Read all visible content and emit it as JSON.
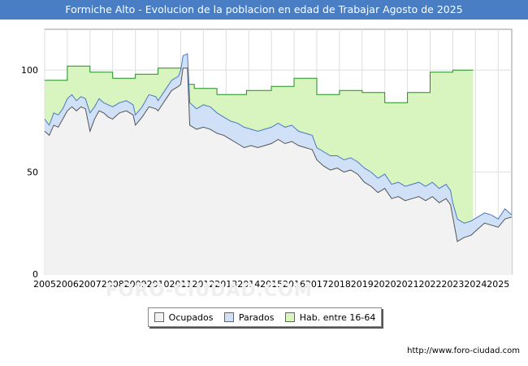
{
  "title": "Formiche Alto - Evolucion de la poblacion en edad de Trabajar Agosto de 2025",
  "watermark": "FORO-CIUDAD.COM",
  "url": "http://www.foro-ciudad.com",
  "colors": {
    "title_bg": "#4a7ec4",
    "hab_fill": "#d8f5c0",
    "hab_line": "#1f8f1f",
    "parados_fill": "#cfe0f7",
    "parados_line": "#4a78c4",
    "ocupados_fill": "#f2f2f2",
    "ocupados_line": "#555555"
  },
  "chart_data": {
    "type": "area",
    "x_range": [
      2005,
      2025.6
    ],
    "ylim": [
      0,
      120
    ],
    "yticks": [
      0,
      50,
      100
    ],
    "xticks": [
      "2005",
      "2006",
      "2007",
      "2008",
      "2009",
      "2010",
      "2011",
      "2012",
      "2013",
      "2014",
      "2015",
      "2016",
      "2017",
      "2018",
      "2019",
      "2020",
      "2021",
      "2022",
      "2023",
      "2024",
      "2025"
    ],
    "grid": true,
    "legend_position": "bottom",
    "legend": [
      "Ocupados",
      "Parados",
      "Hab. entre 16-64"
    ],
    "series": [
      {
        "name": "Hab. entre 16-64",
        "points": [
          [
            2005,
            95
          ],
          [
            2006,
            95
          ],
          [
            2006,
            102
          ],
          [
            2007,
            102
          ],
          [
            2007,
            99
          ],
          [
            2008,
            99
          ],
          [
            2008,
            96
          ],
          [
            2009,
            96
          ],
          [
            2009,
            98
          ],
          [
            2010,
            98
          ],
          [
            2010,
            101
          ],
          [
            2011,
            101
          ],
          [
            2011,
            93
          ],
          [
            2011.6,
            93
          ],
          [
            2011.6,
            91
          ],
          [
            2012.6,
            91
          ],
          [
            2012.6,
            88
          ],
          [
            2013.9,
            88
          ],
          [
            2013.9,
            90
          ],
          [
            2015,
            90
          ],
          [
            2015,
            92
          ],
          [
            2016,
            92
          ],
          [
            2016,
            96
          ],
          [
            2017,
            96
          ],
          [
            2017,
            88
          ],
          [
            2018,
            88
          ],
          [
            2018,
            90
          ],
          [
            2019,
            90
          ],
          [
            2019,
            89
          ],
          [
            2020,
            89
          ],
          [
            2020,
            84
          ],
          [
            2021,
            84
          ],
          [
            2021,
            89
          ],
          [
            2022,
            89
          ],
          [
            2022,
            99
          ],
          [
            2023,
            99
          ],
          [
            2023,
            100
          ],
          [
            2023.9,
            100
          ]
        ]
      },
      {
        "name": "Parados",
        "points": [
          [
            2005,
            76
          ],
          [
            2005.2,
            73
          ],
          [
            2005.4,
            79
          ],
          [
            2005.6,
            78
          ],
          [
            2005.8,
            81
          ],
          [
            2006,
            86
          ],
          [
            2006.2,
            88
          ],
          [
            2006.4,
            85
          ],
          [
            2006.6,
            87
          ],
          [
            2006.8,
            86
          ],
          [
            2007,
            79
          ],
          [
            2007.2,
            82
          ],
          [
            2007.4,
            86
          ],
          [
            2007.6,
            84
          ],
          [
            2007.8,
            83
          ],
          [
            2008,
            82
          ],
          [
            2008.3,
            84
          ],
          [
            2008.6,
            85
          ],
          [
            2008.9,
            83
          ],
          [
            2009,
            78
          ],
          [
            2009.3,
            82
          ],
          [
            2009.6,
            88
          ],
          [
            2009.9,
            87
          ],
          [
            2010,
            85
          ],
          [
            2010.3,
            90
          ],
          [
            2010.6,
            95
          ],
          [
            2010.9,
            97
          ],
          [
            2011,
            100
          ],
          [
            2011.1,
            107
          ],
          [
            2011.3,
            108
          ],
          [
            2011.4,
            84
          ],
          [
            2011.7,
            81
          ],
          [
            2012,
            83
          ],
          [
            2012.3,
            82
          ],
          [
            2012.6,
            79
          ],
          [
            2012.9,
            77
          ],
          [
            2013.2,
            75
          ],
          [
            2013.5,
            74
          ],
          [
            2013.8,
            72
          ],
          [
            2014.1,
            71
          ],
          [
            2014.4,
            70
          ],
          [
            2014.7,
            71
          ],
          [
            2015,
            72
          ],
          [
            2015.3,
            74
          ],
          [
            2015.6,
            72
          ],
          [
            2015.9,
            73
          ],
          [
            2016.2,
            70
          ],
          [
            2016.5,
            69
          ],
          [
            2016.8,
            68
          ],
          [
            2017,
            62
          ],
          [
            2017.3,
            60
          ],
          [
            2017.6,
            58
          ],
          [
            2017.9,
            58
          ],
          [
            2018.2,
            56
          ],
          [
            2018.5,
            57
          ],
          [
            2018.8,
            55
          ],
          [
            2019.1,
            52
          ],
          [
            2019.4,
            50
          ],
          [
            2019.7,
            47
          ],
          [
            2020,
            49
          ],
          [
            2020.3,
            44
          ],
          [
            2020.6,
            45
          ],
          [
            2020.9,
            43
          ],
          [
            2021.2,
            44
          ],
          [
            2021.5,
            45
          ],
          [
            2021.8,
            43
          ],
          [
            2022.1,
            45
          ],
          [
            2022.4,
            42
          ],
          [
            2022.7,
            44
          ],
          [
            2022.9,
            41
          ],
          [
            2023,
            35
          ],
          [
            2023.2,
            27
          ],
          [
            2023.5,
            25
          ],
          [
            2023.8,
            26
          ],
          [
            2024.1,
            28
          ],
          [
            2024.4,
            30
          ],
          [
            2024.7,
            29
          ],
          [
            2025,
            27
          ],
          [
            2025.3,
            32
          ],
          [
            2025.6,
            29
          ]
        ]
      },
      {
        "name": "Ocupados",
        "points": [
          [
            2005,
            70
          ],
          [
            2005.2,
            68
          ],
          [
            2005.4,
            73
          ],
          [
            2005.6,
            72
          ],
          [
            2005.8,
            76
          ],
          [
            2006,
            80
          ],
          [
            2006.2,
            82
          ],
          [
            2006.4,
            80
          ],
          [
            2006.6,
            82
          ],
          [
            2006.8,
            81
          ],
          [
            2007,
            70
          ],
          [
            2007.2,
            76
          ],
          [
            2007.4,
            80
          ],
          [
            2007.6,
            79
          ],
          [
            2007.8,
            77
          ],
          [
            2008,
            76
          ],
          [
            2008.3,
            79
          ],
          [
            2008.6,
            80
          ],
          [
            2008.9,
            78
          ],
          [
            2009,
            73
          ],
          [
            2009.3,
            77
          ],
          [
            2009.6,
            82
          ],
          [
            2009.9,
            81
          ],
          [
            2010,
            80
          ],
          [
            2010.3,
            85
          ],
          [
            2010.6,
            90
          ],
          [
            2010.9,
            92
          ],
          [
            2011,
            93
          ],
          [
            2011.1,
            101
          ],
          [
            2011.3,
            101
          ],
          [
            2011.4,
            73
          ],
          [
            2011.7,
            71
          ],
          [
            2012,
            72
          ],
          [
            2012.3,
            71
          ],
          [
            2012.6,
            69
          ],
          [
            2012.9,
            68
          ],
          [
            2013.2,
            66
          ],
          [
            2013.5,
            64
          ],
          [
            2013.8,
            62
          ],
          [
            2014.1,
            63
          ],
          [
            2014.4,
            62
          ],
          [
            2014.7,
            63
          ],
          [
            2015,
            64
          ],
          [
            2015.3,
            66
          ],
          [
            2015.6,
            64
          ],
          [
            2015.9,
            65
          ],
          [
            2016.2,
            63
          ],
          [
            2016.5,
            62
          ],
          [
            2016.8,
            61
          ],
          [
            2017,
            56
          ],
          [
            2017.3,
            53
          ],
          [
            2017.6,
            51
          ],
          [
            2017.9,
            52
          ],
          [
            2018.2,
            50
          ],
          [
            2018.5,
            51
          ],
          [
            2018.8,
            49
          ],
          [
            2019.1,
            45
          ],
          [
            2019.4,
            43
          ],
          [
            2019.7,
            40
          ],
          [
            2020,
            42
          ],
          [
            2020.3,
            37
          ],
          [
            2020.6,
            38
          ],
          [
            2020.9,
            36
          ],
          [
            2021.2,
            37
          ],
          [
            2021.5,
            38
          ],
          [
            2021.8,
            36
          ],
          [
            2022.1,
            38
          ],
          [
            2022.4,
            35
          ],
          [
            2022.7,
            37
          ],
          [
            2022.9,
            34
          ],
          [
            2023,
            28
          ],
          [
            2023.2,
            16
          ],
          [
            2023.5,
            18
          ],
          [
            2023.8,
            19
          ],
          [
            2024.1,
            22
          ],
          [
            2024.4,
            25
          ],
          [
            2024.7,
            24
          ],
          [
            2025,
            23
          ],
          [
            2025.3,
            27
          ],
          [
            2025.6,
            28
          ]
        ]
      }
    ]
  }
}
